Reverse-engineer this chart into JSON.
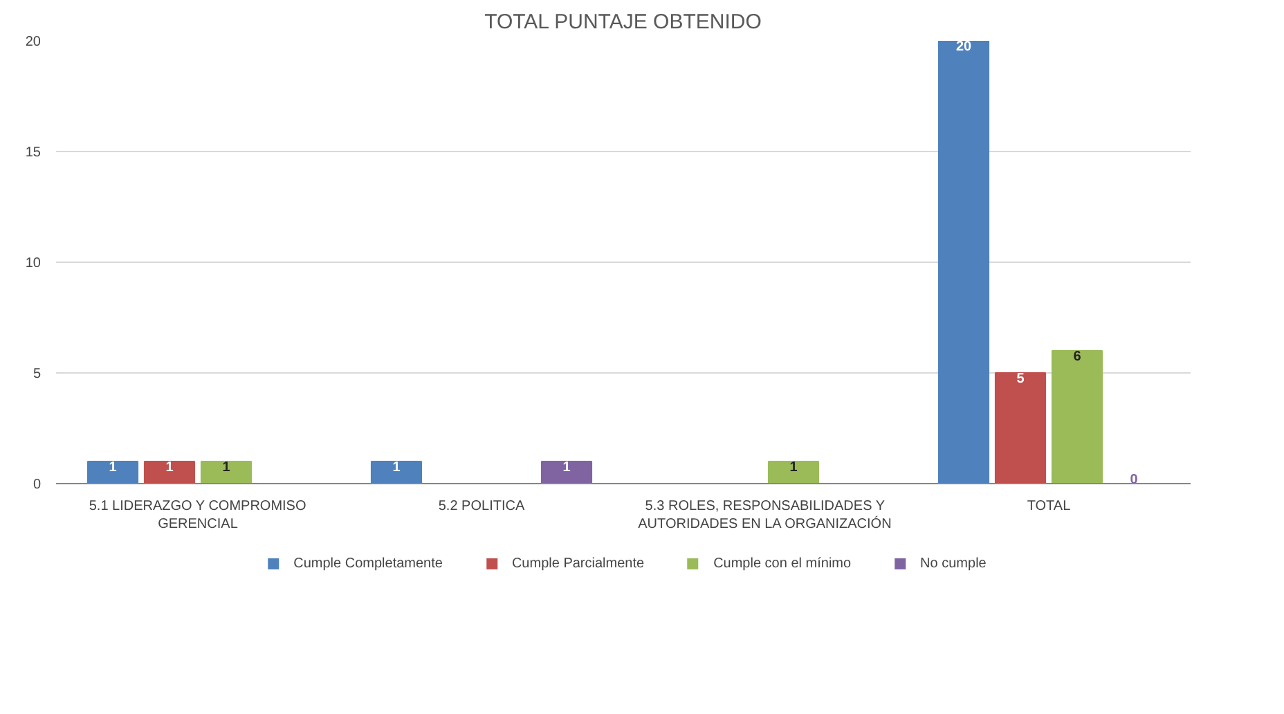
{
  "chart_data": {
    "type": "bar",
    "title": "TOTAL PUNTAJE OBTENIDO",
    "categories": [
      "5.1 LIDERAZGO Y COMPROMISO GERENCIAL",
      "5.2 POLITICA",
      "5.3 ROLES, RESPONSABILIDADES Y AUTORIDADES EN LA ORGANIZACIÓN",
      "TOTAL"
    ],
    "series": [
      {
        "name": "Cumple Completamente",
        "color": "#4f81bd",
        "values": [
          1,
          1,
          null,
          20
        ]
      },
      {
        "name": "Cumple Parcialmente",
        "color": "#c0504d",
        "values": [
          1,
          null,
          null,
          5
        ]
      },
      {
        "name": "Cumple con el mínimo",
        "color": "#9bbb59",
        "values": [
          1,
          null,
          1,
          6
        ]
      },
      {
        "name": "No cumple",
        "color": "#8064a2",
        "values": [
          null,
          1,
          null,
          0
        ]
      }
    ],
    "ylim": [
      0,
      20
    ],
    "yticks": [
      0,
      5,
      10,
      15,
      20
    ],
    "grid": "y",
    "legend": "bottom",
    "data_labels": true
  }
}
